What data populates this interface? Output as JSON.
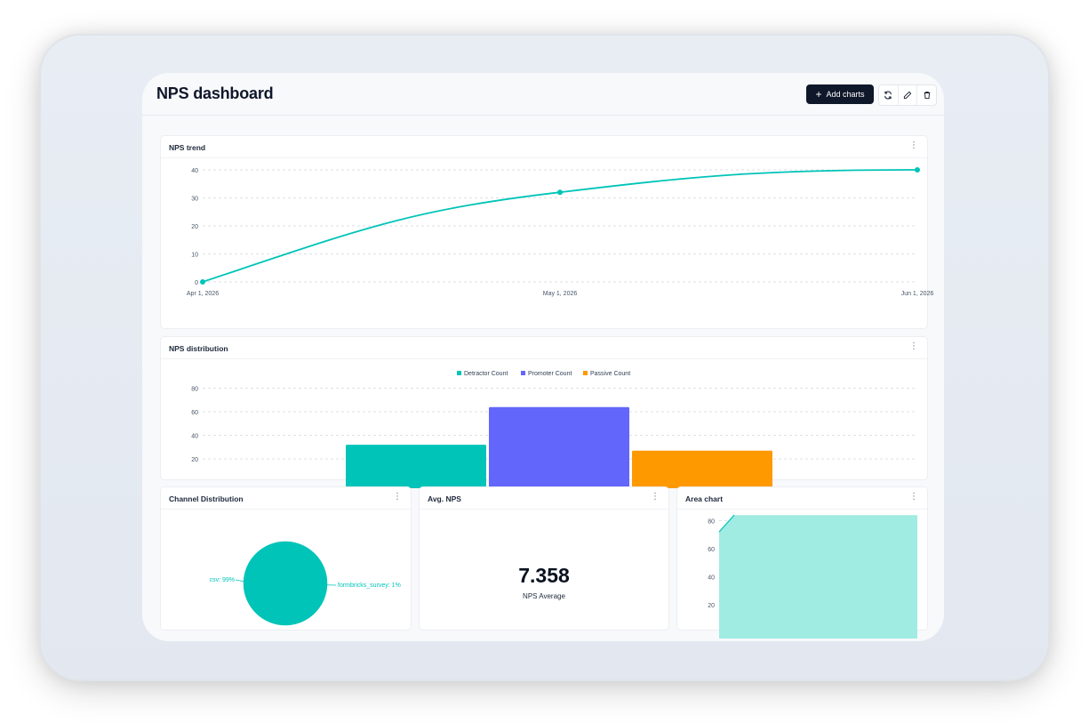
{
  "header": {
    "title": "NPS dashboard",
    "add_charts_label": "Add charts"
  },
  "colors": {
    "teal": "#00c4b8",
    "purple": "#6366fa",
    "orange": "#ff9900",
    "area_fill": "#a0ebe2",
    "dark": "#0f172a"
  },
  "icons": {
    "add": "plus-icon",
    "refresh": "refresh-icon",
    "edit": "pencil-icon",
    "delete": "trash-icon",
    "menu": "more-vertical-icon"
  },
  "cards": {
    "trend": {
      "title": "NPS trend"
    },
    "distribution": {
      "title": "NPS distribution"
    },
    "channel": {
      "title": "Channel Distribution"
    },
    "avg": {
      "title": "Avg. NPS",
      "value": "7.358",
      "caption": "NPS Average"
    },
    "area": {
      "title": "Area chart"
    }
  },
  "chart_data": [
    {
      "type": "line",
      "title": "NPS trend",
      "x": [
        "Apr 1, 2026",
        "May 1, 2026",
        "Jun 1, 2026"
      ],
      "series": [
        {
          "values": [
            0,
            32,
            40
          ]
        }
      ],
      "yticks": [
        0,
        10,
        20,
        30,
        40
      ],
      "ylim": [
        0,
        40
      ],
      "grid": true
    },
    {
      "type": "bar",
      "title": "NPS distribution",
      "categories": [
        "Detractor Count",
        "Promoter Count",
        "Passive Count"
      ],
      "series": [
        {
          "name": "Detractor Count",
          "value": 32
        },
        {
          "name": "Promoter Count",
          "value": 64
        },
        {
          "name": "Passive Count",
          "value": 27
        }
      ],
      "yticks": [
        20,
        40,
        60,
        80
      ],
      "legend": "top-center",
      "grid": true
    },
    {
      "type": "pie",
      "title": "Channel Distribution",
      "slices": [
        {
          "label": "csv: 99%",
          "value": 99
        },
        {
          "label": "formbricks_survey: 1%",
          "value": 1
        }
      ]
    },
    {
      "type": "area",
      "title": "Area chart",
      "series": [
        {
          "values": [
            72,
            84,
            84,
            84
          ]
        }
      ],
      "yticks": [
        20,
        40,
        60,
        80
      ]
    }
  ]
}
